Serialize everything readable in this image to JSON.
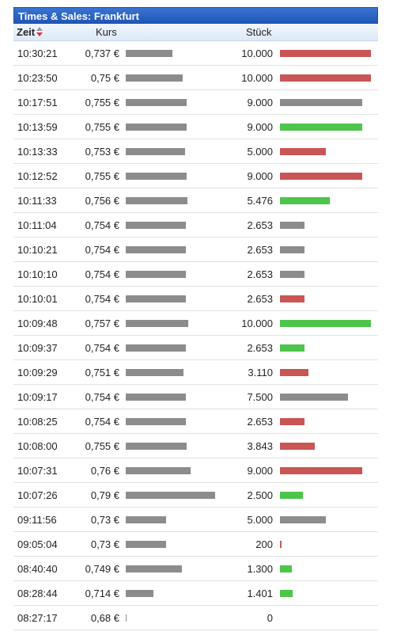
{
  "widget": {
    "title": "Times & Sales: Frankfurt",
    "columns": {
      "time": "Zeit",
      "price": "Kurs",
      "quantity": "Stück"
    },
    "sort": {
      "column": "time",
      "direction": "descending"
    },
    "bar_colors": {
      "neutral": "#8c8c8c",
      "up": "#4cc54a",
      "down": "#c95555"
    },
    "trades": [
      {
        "time": "10:30:21",
        "price": "0,737 €",
        "quantity": "10.000",
        "direction": "down"
      },
      {
        "time": "10:23:50",
        "price": "0,75 €",
        "quantity": "10.000",
        "direction": "down"
      },
      {
        "time": "10:17:51",
        "price": "0,755 €",
        "quantity": "9.000",
        "direction": "neutral"
      },
      {
        "time": "10:13:59",
        "price": "0,755 €",
        "quantity": "9.000",
        "direction": "up"
      },
      {
        "time": "10:13:33",
        "price": "0,753 €",
        "quantity": "5.000",
        "direction": "down"
      },
      {
        "time": "10:12:52",
        "price": "0,755 €",
        "quantity": "9.000",
        "direction": "down"
      },
      {
        "time": "10:11:33",
        "price": "0,756 €",
        "quantity": "5.476",
        "direction": "up"
      },
      {
        "time": "10:11:04",
        "price": "0,754 €",
        "quantity": "2.653",
        "direction": "neutral"
      },
      {
        "time": "10:10:21",
        "price": "0,754 €",
        "quantity": "2.653",
        "direction": "neutral"
      },
      {
        "time": "10:10:10",
        "price": "0,754 €",
        "quantity": "2.653",
        "direction": "neutral"
      },
      {
        "time": "10:10:01",
        "price": "0,754 €",
        "quantity": "2.653",
        "direction": "down"
      },
      {
        "time": "10:09:48",
        "price": "0,757 €",
        "quantity": "10.000",
        "direction": "up"
      },
      {
        "time": "10:09:37",
        "price": "0,754 €",
        "quantity": "2.653",
        "direction": "up"
      },
      {
        "time": "10:09:29",
        "price": "0,751 €",
        "quantity": "3.110",
        "direction": "down"
      },
      {
        "time": "10:09:17",
        "price": "0,754 €",
        "quantity": "7.500",
        "direction": "neutral"
      },
      {
        "time": "10:08:25",
        "price": "0,754 €",
        "quantity": "2.653",
        "direction": "down"
      },
      {
        "time": "10:08:00",
        "price": "0,755 €",
        "quantity": "3.843",
        "direction": "down"
      },
      {
        "time": "10:07:31",
        "price": "0,76 €",
        "quantity": "9.000",
        "direction": "down"
      },
      {
        "time": "10:07:26",
        "price": "0,79 €",
        "quantity": "2.500",
        "direction": "up"
      },
      {
        "time": "09:11:56",
        "price": "0,73 €",
        "quantity": "5.000",
        "direction": "neutral"
      },
      {
        "time": "09:05:04",
        "price": "0,73 €",
        "quantity": "200",
        "direction": "down"
      },
      {
        "time": "08:40:40",
        "price": "0,749 €",
        "quantity": "1.300",
        "direction": "up"
      },
      {
        "time": "08:28:44",
        "price": "0,714 €",
        "quantity": "1.401",
        "direction": "up"
      },
      {
        "time": "08:27:17",
        "price": "0,68 €",
        "quantity": "0",
        "direction": "neutral"
      }
    ]
  }
}
